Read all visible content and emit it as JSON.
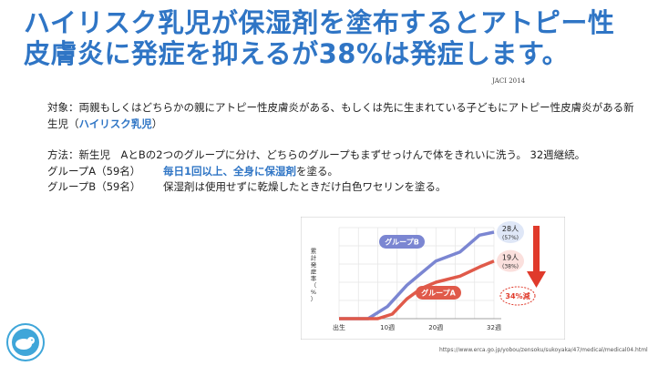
{
  "slide": {
    "title_line1": "ハイリスク乳児が保湿剤を塗布するとアトピー性",
    "title_line2": "皮膚炎に発症を抑えるが38%は発症します。",
    "journal": "JACI 2014",
    "subject_text": "対象：両親もしくはどちらかの親にアトピー性皮膚炎がある、もしくは先に生まれている子どもにアトピー性皮膚炎がある新生児（",
    "subject_highlight": "ハイリスク乳児",
    "subject_close": "）",
    "method_text": "方法：新生児　AとBの2つのグループに分け、どちらのグループもまずせっけんで体をきれいに洗う。 32週継続。",
    "group_a_label": "グループA（59名）",
    "group_a_highlight": "毎日1回以上、全身に保湿剤",
    "group_a_rest": "を塗る。",
    "group_b_label": "グループB（59名）",
    "group_b_text": "保湿剤は使用せずに乾燥したときだけ白色ワセリンを塗る。",
    "source_url": "https://www.erca.go.jp/yobou/zensoku/sukoyaka/47/medical/medical04.html"
  },
  "chart_data": {
    "type": "line",
    "ylabel": "累計発症率（%）",
    "x_ticks": [
      "出生",
      "10週",
      "20週",
      "32週"
    ],
    "series": [
      {
        "name": "グループB",
        "color": "#7b86d2",
        "end_label": "28人",
        "end_pct": "(57%)",
        "points": [
          [
            0,
            0
          ],
          [
            6,
            0
          ],
          [
            10,
            8
          ],
          [
            14,
            22
          ],
          [
            17,
            30
          ],
          [
            20,
            38
          ],
          [
            25,
            44
          ],
          [
            29,
            55
          ],
          [
            32,
            57
          ]
        ]
      },
      {
        "name": "グループA",
        "color": "#e05a4a",
        "end_label": "19人",
        "end_pct": "(38%)",
        "points": [
          [
            0,
            0
          ],
          [
            8,
            0
          ],
          [
            11,
            3
          ],
          [
            14,
            13
          ],
          [
            17,
            20
          ],
          [
            20,
            24
          ],
          [
            25,
            28
          ],
          [
            29,
            34
          ],
          [
            32,
            38
          ]
        ]
      }
    ],
    "reduction_label": "34%減"
  },
  "colors": {
    "title_blue": "#2f75c5",
    "series_b": "#7b86d2",
    "series_a": "#e05a4a",
    "arrow_red": "#e03a2b"
  }
}
